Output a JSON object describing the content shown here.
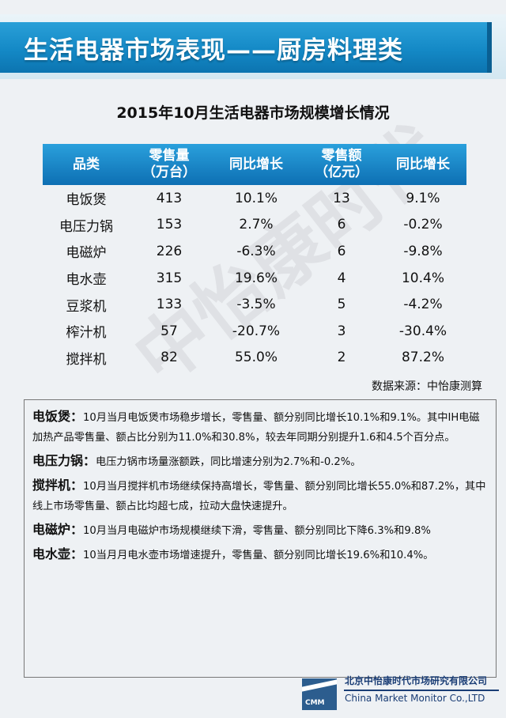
{
  "header": {
    "title": "生活电器市场表现——厨房料理类"
  },
  "table": {
    "title": "2015年10月生活电器市场规模增长情况",
    "columns": [
      {
        "line1": "品类",
        "line2": ""
      },
      {
        "line1": "零售量",
        "line2": "（万台）"
      },
      {
        "line1": "同比增长",
        "line2": ""
      },
      {
        "line1": "零售额",
        "line2": "（亿元）"
      },
      {
        "line1": "同比增长",
        "line2": ""
      }
    ],
    "rows": [
      [
        "电饭煲",
        "413",
        "10.1%",
        "13",
        "9.1%"
      ],
      [
        "电压力锅",
        "153",
        "2.7%",
        "6",
        "-0.2%"
      ],
      [
        "电磁炉",
        "226",
        "-6.3%",
        "6",
        "-9.8%"
      ],
      [
        "电水壶",
        "315",
        "19.6%",
        "4",
        "10.4%"
      ],
      [
        "豆浆机",
        "133",
        "-3.5%",
        "5",
        "-4.2%"
      ],
      [
        "榨汁机",
        "57",
        "-20.7%",
        "3",
        "-30.4%"
      ],
      [
        "搅拌机",
        "82",
        "55.0%",
        "2",
        "87.2%"
      ]
    ],
    "source": "数据来源：中怡康测算"
  },
  "notes": [
    {
      "term": "电饭煲：",
      "text": "10月当月电饭煲市场稳步增长，零售量、额分别同比增长10.1%和9.1%。其中IH电磁加热产品零售量、额占比分别为11.0%和30.8%，较去年同期分别提升1.6和4.5个百分点。"
    },
    {
      "term": "电压力锅：",
      "text": "电压力锅市场量涨额跌，同比增速分别为2.7%和-0.2%。"
    },
    {
      "term": "搅拌机：",
      "text": "10月当月搅拌机市场继续保持高增长，零售量、额分别同比增长55.0%和87.2%，其中线上市场零售量、额占比均超七成，拉动大盘快速提升。"
    },
    {
      "term": "电磁炉：",
      "text": "10月当月电磁炉市场规模继续下滑，零售量、额分别同比下降6.3%和9.8%"
    },
    {
      "term": "电水壶：",
      "text": "10当月月电水壶市场增速提升，零售量、额分别同比增长19.6%和10.4%。"
    }
  ],
  "footer": {
    "logo_text": "CMM",
    "company_cn": "北京中怡康时代市场研究有限公司",
    "company_en": "China Market Monitor Co.,LTD"
  },
  "watermark": "中怡康时代"
}
